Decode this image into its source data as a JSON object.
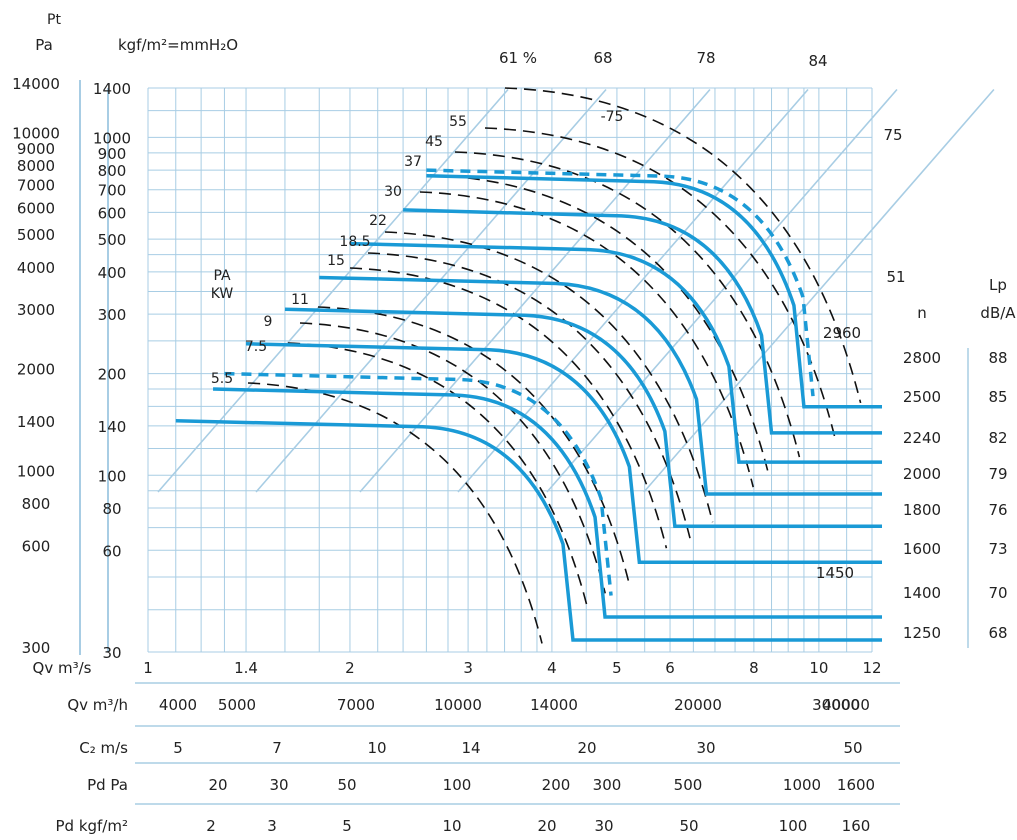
{
  "chart_data": {
    "type": "line",
    "header": {
      "pt_label": "Pt",
      "pa_unit": "Pa",
      "kgf_unit": "kgf/m²=mmH₂O"
    },
    "colors": {
      "curve": "#1a9ad6",
      "grid": "#a8cde4",
      "dash": "#111111",
      "text": "#222222"
    },
    "x_axis": {
      "label": "Qv m³/s",
      "scale": "log",
      "range": [
        1,
        12
      ],
      "ticks": [
        "1",
        "1.4",
        "2",
        "3",
        "4",
        "5",
        "6",
        "8",
        "10",
        "12"
      ]
    },
    "y_axis_pa": {
      "label": "Pa",
      "scale": "log",
      "ticks": [
        {
          "label": "14000",
          "v": 1400
        },
        {
          "label": "10000",
          "v": 1000
        },
        {
          "label": "9000",
          "v": 900
        },
        {
          "label": "8000",
          "v": 800
        },
        {
          "label": "7000",
          "v": 700
        },
        {
          "label": "6000",
          "v": 600
        },
        {
          "label": "5000",
          "v": 500
        },
        {
          "label": "4000",
          "v": 400
        },
        {
          "label": "3000",
          "v": 300
        },
        {
          "label": "2000",
          "v": 200
        },
        {
          "label": "1400",
          "v": 140
        },
        {
          "label": "1000",
          "v": 100
        },
        {
          "label": "800",
          "v": 80
        },
        {
          "label": "600",
          "v": 60
        },
        {
          "label": "300",
          "v": 30
        }
      ]
    },
    "y_axis_kgf": {
      "label": "kgf/m²",
      "scale": "log",
      "range": [
        30,
        1400
      ],
      "ticks": [
        "1400",
        "1000",
        "900",
        "800",
        "700",
        "600",
        "500",
        "400",
        "300",
        "200",
        "140",
        "100",
        "80",
        "60",
        "30"
      ]
    },
    "efficiency_lines": {
      "labels": [
        "61 %",
        "68",
        "78",
        "84",
        "75",
        "51"
      ],
      "foot_q": [
        1.0,
        1.4,
        2.0,
        2.8,
        3.8,
        5.3
      ]
    },
    "power_lines": {
      "title": [
        "PA",
        "KW"
      ],
      "labels": [
        "5.5",
        "7.5",
        "9",
        "11",
        "15",
        "18.5",
        "22",
        "30",
        "37",
        "45",
        "55",
        "-75"
      ]
    },
    "speed_curves": {
      "n_label": "n",
      "lp_label": "Lp",
      "lp_unit": "dB/A",
      "series": [
        {
          "name": "2960",
          "q_start": 2.6,
          "p": 800,
          "q_end": 9.8,
          "dashed": true
        },
        {
          "name": "2800",
          "q_start": 2.6,
          "p": 770,
          "q_end": 9.5,
          "lp": "88"
        },
        {
          "name": "2500",
          "q_start": 2.4,
          "p": 610,
          "q_end": 8.5,
          "lp": "85"
        },
        {
          "name": "2240",
          "q_start": 2.0,
          "p": 485,
          "q_end": 7.6,
          "lp": "82"
        },
        {
          "name": "2000",
          "q_start": 1.8,
          "p": 385,
          "q_end": 6.8,
          "lp": "79"
        },
        {
          "name": "1800",
          "q_start": 1.6,
          "p": 310,
          "q_end": 6.1,
          "lp": "76"
        },
        {
          "name": "1600",
          "q_start": 1.4,
          "p": 245,
          "q_end": 5.4,
          "lp": "73"
        },
        {
          "name": "1450",
          "q_start": 1.3,
          "p": 200,
          "q_end": 4.9,
          "dashed": true
        },
        {
          "name": "1400",
          "q_start": 1.25,
          "p": 180,
          "q_end": 4.8,
          "lp": "70"
        },
        {
          "name": "1250",
          "q_start": 1.1,
          "p": 145,
          "q_end": 4.3,
          "lp": "68"
        }
      ]
    },
    "scales": [
      {
        "label": "Qv m³/h",
        "ticks": [
          "4000",
          "5000",
          "7000",
          "10000",
          "14000",
          "20000",
          "30000",
          "40000"
        ]
      },
      {
        "label": "C₂ m/s",
        "ticks": [
          "5",
          "7",
          "10",
          "14",
          "20",
          "30",
          "50"
        ]
      },
      {
        "label": "Pd Pa",
        "ticks": [
          "20",
          "30",
          "50",
          "100",
          "200",
          "300",
          "500",
          "1000",
          "1600"
        ]
      },
      {
        "label": "Pd kgf/m²",
        "ticks": [
          "2",
          "3",
          "5",
          "10",
          "20",
          "30",
          "50",
          "100",
          "160"
        ]
      }
    ]
  }
}
